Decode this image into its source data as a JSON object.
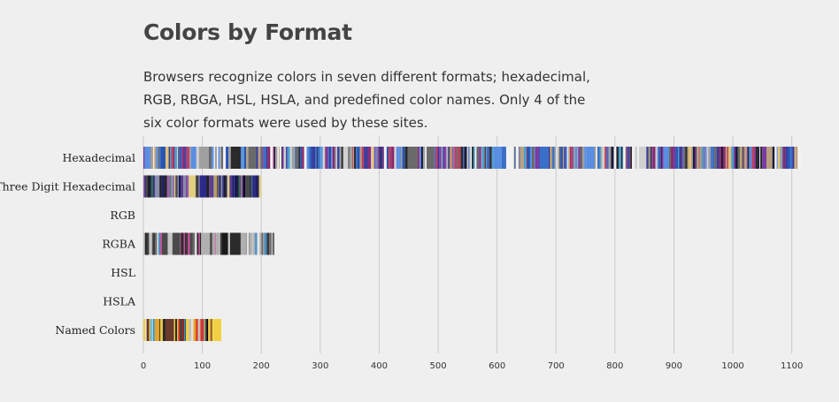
{
  "title": "Colors by Format",
  "description": "Browsers recognize colors in seven different formats; hexadecimal, RGB, RBGA, HSL, HSLA, and predefined color names. Only 4 of the six color formats were used by these sites.",
  "chart_data": {
    "type": "bar",
    "orientation": "horizontal",
    "categories": [
      "Hexadecimal",
      "Three Digit Hexadecimal",
      "RGB",
      "RGBA",
      "HSL",
      "HSLA",
      "Named Colors"
    ],
    "values": [
      1115,
      200,
      0,
      222,
      0,
      0,
      132
    ],
    "xlim": [
      0,
      1120
    ],
    "xticks": [
      "0",
      "100",
      "200",
      "300",
      "400",
      "500",
      "600",
      "700",
      "800",
      "900",
      "1000",
      "1100"
    ],
    "grid": true,
    "mark_style": "stacked color swatches",
    "palettes": {
      "Hexadecimal": [
        "#3a6fc9",
        "#2a55b0",
        "#5b8ee0",
        "#7a3aa0",
        "#1a1a3a",
        "#b8a080",
        "#6a6a6a",
        "#d0d0d0",
        "#e8c070",
        "#c04060",
        "#2b2b2b",
        "#f2f2f2",
        "#4aa0d0",
        "#8a2a6a",
        "#a0a0a0",
        "#3a3a9a"
      ],
      "Three Digit Hexadecimal": [
        "#1a1a5a",
        "#2a2a8a",
        "#0a0a2a",
        "#5a3a8a",
        "#c0a040",
        "#4a4a4a",
        "#8a8aaa",
        "#e0d080",
        "#3a6a4a",
        "#202020",
        "#9a5aaa"
      ],
      "RGBA": [
        "#2a2a2a",
        "#6a6a6a",
        "#9a9a9a",
        "#c4c4c4",
        "#e4e4e4",
        "#4a4a4a",
        "#d04aa0",
        "#4a90c0",
        "#3a3a3a",
        "#b0b0b0",
        "#1a1a1a"
      ],
      "Named Colors": [
        "#e03020",
        "#000000",
        "#e8a020",
        "#2a2a2a",
        "#f0d040",
        "#8a2a2a",
        "#20a0e0",
        "#6a3a2a",
        "#c0c0c0",
        "#e0e0e0",
        "#3a3a3a"
      ]
    }
  }
}
